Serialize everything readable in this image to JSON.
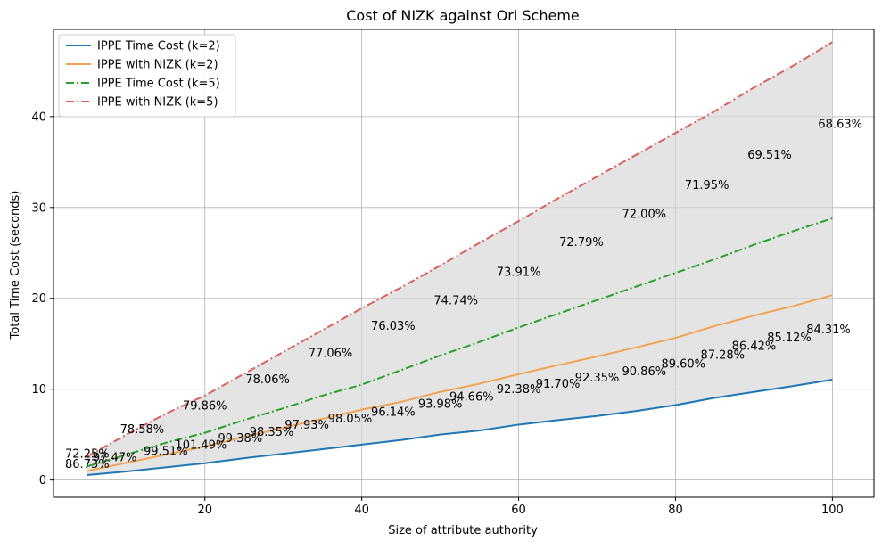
{
  "chart_data": {
    "type": "line",
    "title": "Cost of NIZK against Ori Scheme",
    "xlabel": "Size of attribute authority",
    "ylabel": "Total Time Cost (seconds)",
    "xlim": [
      0.7,
      105.3
    ],
    "ylim": [
      -1.9,
      49.6
    ],
    "xticks": [
      20,
      40,
      60,
      80,
      100
    ],
    "yticks": [
      0,
      10,
      20,
      30,
      40
    ],
    "grid": true,
    "legend_position": "top-left",
    "series": [
      {
        "name": "IPPE Time Cost (k=2)",
        "color": "#1f77b4",
        "linestyle": "solid",
        "x": [
          5,
          10,
          15,
          20,
          25,
          30,
          35,
          40,
          45,
          50,
          55,
          60,
          65,
          70,
          75,
          80,
          85,
          90,
          95,
          100
        ],
        "y": [
          0.55,
          0.95,
          1.4,
          1.85,
          2.4,
          2.9,
          3.4,
          3.9,
          4.4,
          5.0,
          5.45,
          6.1,
          6.6,
          7.05,
          7.6,
          8.25,
          9.05,
          9.7,
          10.35,
          11.05
        ]
      },
      {
        "name": "IPPE with NIZK (k=2)",
        "color": "#f4a352",
        "linestyle": "solid",
        "x": [
          5,
          10,
          15,
          20,
          25,
          30,
          35,
          40,
          45,
          50,
          55,
          60,
          65,
          70,
          75,
          80,
          85,
          90,
          95,
          100
        ],
        "y": [
          1.0,
          1.9,
          2.8,
          3.7,
          4.75,
          5.75,
          6.75,
          7.75,
          8.6,
          9.7,
          10.6,
          11.65,
          12.65,
          13.6,
          14.6,
          15.65,
          16.95,
          18.1,
          19.15,
          20.35
        ]
      },
      {
        "name": "IPPE Time Cost (k=5)",
        "color": "#2ca02c",
        "linestyle": "dashdot",
        "x": [
          5,
          10,
          15,
          20,
          25,
          30,
          35,
          40,
          45,
          50,
          55,
          60,
          65,
          70,
          75,
          80,
          85,
          90,
          95,
          100
        ],
        "y": [
          1.5,
          2.8,
          4.1,
          5.2,
          6.6,
          7.9,
          9.3,
          10.5,
          12.1,
          13.7,
          15.2,
          16.8,
          18.3,
          19.8,
          21.3,
          22.8,
          24.3,
          25.9,
          27.4,
          28.8
        ]
      },
      {
        "name": "IPPE with NIZK (k=5)",
        "color": "#d9625c",
        "linestyle": "dashdot",
        "x": [
          5,
          10,
          15,
          20,
          25,
          30,
          35,
          40,
          45,
          50,
          55,
          60,
          65,
          70,
          75,
          80,
          85,
          90,
          95,
          100
        ],
        "y": [
          2.6,
          5.0,
          7.3,
          9.3,
          11.7,
          14.1,
          16.5,
          18.9,
          21.2,
          23.6,
          26.1,
          28.5,
          31.0,
          33.4,
          35.8,
          38.2,
          40.6,
          43.2,
          45.6,
          48.2
        ]
      }
    ],
    "shaded_bands": [
      {
        "between": [
          "IPPE Time Cost (k=2)",
          "IPPE with NIZK (k=5)"
        ],
        "color": "#d9d9d9"
      }
    ],
    "annotations": [
      {
        "text": "72.25%",
        "x": 5,
        "y": 2.9
      },
      {
        "text": "86.73%",
        "x": 5,
        "y": 1.8
      },
      {
        "text": "97.47%",
        "x": 8.5,
        "y": 2.5
      },
      {
        "text": "78.58%",
        "x": 12,
        "y": 5.6
      },
      {
        "text": "99.51%",
        "x": 15,
        "y": 3.2
      },
      {
        "text": "101.49%",
        "x": 19.5,
        "y": 3.9
      },
      {
        "text": "79.86%",
        "x": 20,
        "y": 8.2
      },
      {
        "text": "99.38%",
        "x": 24.5,
        "y": 4.6
      },
      {
        "text": "78.06%",
        "x": 28,
        "y": 11.1
      },
      {
        "text": "98.35%",
        "x": 28.5,
        "y": 5.3
      },
      {
        "text": "97.93%",
        "x": 33,
        "y": 6.1
      },
      {
        "text": "77.06%",
        "x": 36,
        "y": 14.0
      },
      {
        "text": "98.05%",
        "x": 38.5,
        "y": 6.8
      },
      {
        "text": "76.03%",
        "x": 44,
        "y": 17.0
      },
      {
        "text": "96.14%",
        "x": 44,
        "y": 7.5
      },
      {
        "text": "93.98%",
        "x": 50,
        "y": 8.4
      },
      {
        "text": "74.74%",
        "x": 52,
        "y": 19.8
      },
      {
        "text": "94.66%",
        "x": 54,
        "y": 9.2
      },
      {
        "text": "92.38%",
        "x": 60,
        "y": 10.0
      },
      {
        "text": "73.91%",
        "x": 60,
        "y": 22.9
      },
      {
        "text": "91.70%",
        "x": 65,
        "y": 10.6
      },
      {
        "text": "72.79%",
        "x": 68,
        "y": 26.2
      },
      {
        "text": "92.35%",
        "x": 70,
        "y": 11.3
      },
      {
        "text": "90.86%",
        "x": 76,
        "y": 12.0
      },
      {
        "text": "72.00%",
        "x": 76,
        "y": 29.3
      },
      {
        "text": "89.60%",
        "x": 81,
        "y": 12.8
      },
      {
        "text": "71.95%",
        "x": 84,
        "y": 32.5
      },
      {
        "text": "87.28%",
        "x": 86,
        "y": 13.8
      },
      {
        "text": "86.42%",
        "x": 90,
        "y": 14.8
      },
      {
        "text": "69.51%",
        "x": 92,
        "y": 35.8
      },
      {
        "text": "85.12%",
        "x": 94.5,
        "y": 15.7
      },
      {
        "text": "84.31%",
        "x": 99.5,
        "y": 16.6
      },
      {
        "text": "68.63%",
        "x": 101,
        "y": 39.2
      }
    ]
  }
}
